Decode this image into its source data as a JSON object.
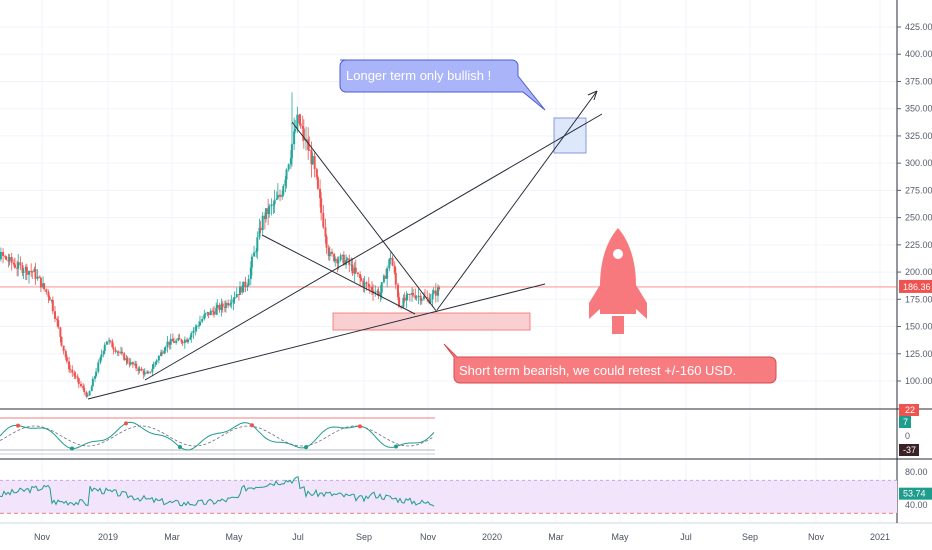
{
  "price_axis": {
    "ticks": [
      "425.00",
      "400.00",
      "375.00",
      "350.00",
      "325.00",
      "300.00",
      "275.00",
      "250.00",
      "225.00",
      "200.00",
      "175.00",
      "150.00",
      "125.00",
      "100.00"
    ],
    "tick_values": [
      425,
      400,
      375,
      350,
      325,
      300,
      275,
      250,
      225,
      200,
      175,
      150,
      125,
      100
    ],
    "current_price_label": "186.36",
    "current_price": 186.36
  },
  "time_axis": {
    "labels": [
      "Nov",
      "2019",
      "Mar",
      "May",
      "Jul",
      "Sep",
      "Nov",
      "2020",
      "Mar",
      "May",
      "Jul",
      "Sep",
      "Nov",
      "2021"
    ]
  },
  "annotations": {
    "bullish_note": "Longer term only bullish !",
    "bearish_note": "Short term bearish, we could retest +/-160 USD."
  },
  "oscillator": {
    "upper_label": "22",
    "value_label": "7",
    "zero_label": "0",
    "lower_label": "-37"
  },
  "rsi": {
    "ticks": [
      "80.00",
      "40.00"
    ],
    "tick_values": [
      80,
      40
    ],
    "value_label": "53.74",
    "value": 53.74
  },
  "colors": {
    "bull_candle": "#26a69a",
    "bear_candle": "#ef5350",
    "bull_callout": "#aab4f8",
    "bear_callout": "#f77c80",
    "rsi_band": "#f1e4fb",
    "rsi_line": "#1e9c8c",
    "price_line": "#ef5350"
  },
  "chart_data": [
    {
      "type": "candlestick",
      "description_series": "price",
      "price_path": [
        {
          "t": "2018-09-01",
          "close": 215
        },
        {
          "t": "2018-09-20",
          "close": 218
        },
        {
          "t": "2018-10-10",
          "close": 205
        },
        {
          "t": "2018-10-25",
          "close": 200
        },
        {
          "t": "2018-11-10",
          "close": 175
        },
        {
          "t": "2018-11-25",
          "close": 115
        },
        {
          "t": "2018-12-14",
          "close": 85
        },
        {
          "t": "2018-12-31",
          "close": 138
        },
        {
          "t": "2019-01-20",
          "close": 118
        },
        {
          "t": "2019-02-07",
          "close": 105
        },
        {
          "t": "2019-02-25",
          "close": 135
        },
        {
          "t": "2019-03-15",
          "close": 138
        },
        {
          "t": "2019-04-01",
          "close": 160
        },
        {
          "t": "2019-04-20",
          "close": 170
        },
        {
          "t": "2019-05-10",
          "close": 190
        },
        {
          "t": "2019-05-25",
          "close": 250
        },
        {
          "t": "2019-06-10",
          "close": 270
        },
        {
          "t": "2019-06-26",
          "close": 340
        },
        {
          "t": "2019-07-10",
          "close": 300
        },
        {
          "t": "2019-07-25",
          "close": 215
        },
        {
          "t": "2019-08-10",
          "close": 210
        },
        {
          "t": "2019-08-25",
          "close": 190
        },
        {
          "t": "2019-09-10",
          "close": 180
        },
        {
          "t": "2019-09-20",
          "close": 215
        },
        {
          "t": "2019-09-28",
          "close": 170
        },
        {
          "t": "2019-10-10",
          "close": 180
        },
        {
          "t": "2019-10-25",
          "close": 175
        },
        {
          "t": "2019-11-05",
          "close": 186
        }
      ]
    },
    {
      "type": "line",
      "description_series": "oscillator",
      "ylim": [
        -37,
        22
      ]
    },
    {
      "type": "line",
      "description_series": "rsi",
      "ticks": [
        80,
        40
      ],
      "last": 53.74
    }
  ]
}
